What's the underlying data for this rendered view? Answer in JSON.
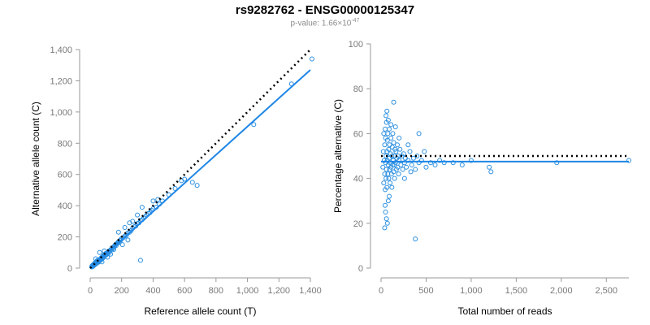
{
  "title": "rs9282762 - ENSG00000125347",
  "subtitle": {
    "prefix": "p-value: 1.66×10",
    "exponent": "-47"
  },
  "colors": {
    "points": "#2b8fe0",
    "fit": "#1f86e6",
    "reference": "#000000",
    "axis": "#9a9a9a"
  },
  "chart_data": [
    {
      "type": "scatter",
      "xlabel": "Reference allele count (T)",
      "ylabel": "Alternative allele count (C)",
      "xlim": [
        0,
        1400
      ],
      "ylim": [
        0,
        1400
      ],
      "xticks": [
        0,
        200,
        400,
        600,
        800,
        1000,
        1200,
        1400
      ],
      "yticks": [
        0,
        200,
        400,
        600,
        800,
        1000,
        1200,
        1400
      ],
      "xtick_labels": [
        "0",
        "200",
        "400",
        "600",
        "800",
        "1,000",
        "1,200",
        "1,400"
      ],
      "ytick_labels": [
        "0",
        "200",
        "400",
        "600",
        "800",
        "1,000",
        "1,200",
        "1,400"
      ],
      "reference_line": {
        "style": "dotted",
        "x": [
          0,
          1400
        ],
        "y": [
          0,
          1400
        ]
      },
      "fit_line": {
        "style": "solid",
        "x": [
          0,
          1400
        ],
        "y": [
          0,
          1270
        ]
      },
      "points": [
        [
          10,
          8
        ],
        [
          12,
          15
        ],
        [
          15,
          10
        ],
        [
          18,
          20
        ],
        [
          20,
          14
        ],
        [
          22,
          25
        ],
        [
          25,
          18
        ],
        [
          28,
          30
        ],
        [
          30,
          22
        ],
        [
          32,
          35
        ],
        [
          35,
          28
        ],
        [
          38,
          40
        ],
        [
          40,
          30
        ],
        [
          42,
          45
        ],
        [
          45,
          35
        ],
        [
          48,
          50
        ],
        [
          50,
          40
        ],
        [
          52,
          38
        ],
        [
          55,
          45
        ],
        [
          58,
          50
        ],
        [
          60,
          55
        ],
        [
          62,
          48
        ],
        [
          65,
          60
        ],
        [
          68,
          52
        ],
        [
          70,
          65
        ],
        [
          72,
          58
        ],
        [
          75,
          70
        ],
        [
          78,
          62
        ],
        [
          80,
          75
        ],
        [
          82,
          68
        ],
        [
          85,
          80
        ],
        [
          88,
          72
        ],
        [
          90,
          85
        ],
        [
          92,
          78
        ],
        [
          95,
          90
        ],
        [
          98,
          82
        ],
        [
          100,
          95
        ],
        [
          105,
          88
        ],
        [
          110,
          100
        ],
        [
          115,
          95
        ],
        [
          120,
          110
        ],
        [
          125,
          105
        ],
        [
          130,
          118
        ],
        [
          135,
          120
        ],
        [
          140,
          130
        ],
        [
          145,
          125
        ],
        [
          150,
          138
        ],
        [
          155,
          140
        ],
        [
          160,
          150
        ],
        [
          165,
          145
        ],
        [
          170,
          158
        ],
        [
          175,
          160
        ],
        [
          180,
          170
        ],
        [
          185,
          165
        ],
        [
          190,
          178
        ],
        [
          195,
          180
        ],
        [
          200,
          190
        ],
        [
          210,
          195
        ],
        [
          220,
          205
        ],
        [
          230,
          210
        ],
        [
          240,
          225
        ],
        [
          250,
          230
        ],
        [
          260,
          240
        ],
        [
          270,
          255
        ],
        [
          280,
          265
        ],
        [
          290,
          270
        ],
        [
          300,
          285
        ],
        [
          310,
          290
        ],
        [
          320,
          305
        ],
        [
          330,
          310
        ],
        [
          340,
          320
        ],
        [
          350,
          330
        ],
        [
          360,
          340
        ],
        [
          370,
          350
        ],
        [
          380,
          355
        ],
        [
          390,
          370
        ],
        [
          400,
          380
        ],
        [
          420,
          390
        ],
        [
          440,
          410
        ],
        [
          460,
          430
        ],
        [
          500,
          470
        ],
        [
          540,
          510
        ],
        [
          580,
          560
        ],
        [
          600,
          570
        ],
        [
          650,
          550
        ],
        [
          680,
          530
        ],
        [
          1040,
          920
        ],
        [
          1280,
          1180
        ],
        [
          1410,
          1340
        ],
        [
          60,
          100
        ],
        [
          90,
          110
        ],
        [
          130,
          90
        ],
        [
          220,
          260
        ],
        [
          250,
          290
        ],
        [
          300,
          340
        ],
        [
          400,
          430
        ],
        [
          180,
          230
        ],
        [
          110,
          70
        ],
        [
          240,
          180
        ],
        [
          320,
          50
        ],
        [
          35,
          60
        ],
        [
          75,
          40
        ],
        [
          150,
          120
        ],
        [
          205,
          150
        ],
        [
          270,
          300
        ],
        [
          330,
          390
        ],
        [
          430,
          440
        ]
      ]
    },
    {
      "type": "scatter",
      "xlabel": "Total number of reads",
      "ylabel": "Percentage alternative (C)",
      "xlim": [
        0,
        2750
      ],
      "ylim": [
        0,
        100
      ],
      "xticks": [
        0,
        500,
        1000,
        1500,
        2000,
        2500
      ],
      "yticks": [
        0,
        20,
        40,
        60,
        80,
        100
      ],
      "xtick_labels": [
        "0",
        "500",
        "1,000",
        "1,500",
        "2,000",
        "2,500"
      ],
      "ytick_labels": [
        "0",
        "20",
        "40",
        "60",
        "80",
        "100"
      ],
      "reference_line": {
        "style": "dotted",
        "x": [
          0,
          2750
        ],
        "y": [
          50,
          50
        ]
      },
      "fit_line": {
        "style": "solid",
        "x": [
          0,
          2750
        ],
        "y": [
          47.5,
          47.5
        ]
      },
      "points": [
        [
          20,
          45
        ],
        [
          25,
          52
        ],
        [
          30,
          38
        ],
        [
          30,
          60
        ],
        [
          35,
          48
        ],
        [
          40,
          42
        ],
        [
          40,
          55
        ],
        [
          45,
          35
        ],
        [
          45,
          62
        ],
        [
          50,
          47
        ],
        [
          50,
          58
        ],
        [
          55,
          40
        ],
        [
          55,
          50
        ],
        [
          60,
          44
        ],
        [
          60,
          65
        ],
        [
          65,
          52
        ],
        [
          65,
          36
        ],
        [
          70,
          48
        ],
        [
          70,
          57
        ],
        [
          75,
          42
        ],
        [
          75,
          60
        ],
        [
          80,
          46
        ],
        [
          80,
          30
        ],
        [
          85,
          53
        ],
        [
          85,
          40
        ],
        [
          90,
          49
        ],
        [
          90,
          62
        ],
        [
          95,
          44
        ],
        [
          95,
          55
        ],
        [
          100,
          47
        ],
        [
          100,
          38
        ],
        [
          105,
          51
        ],
        [
          110,
          45
        ],
        [
          110,
          58
        ],
        [
          115,
          42
        ],
        [
          120,
          50
        ],
        [
          120,
          36
        ],
        [
          125,
          54
        ],
        [
          130,
          46
        ],
        [
          130,
          60
        ],
        [
          135,
          48
        ],
        [
          140,
          43
        ],
        [
          140,
          56
        ],
        [
          145,
          50
        ],
        [
          150,
          46
        ],
        [
          150,
          40
        ],
        [
          155,
          53
        ],
        [
          160,
          47
        ],
        [
          165,
          52
        ],
        [
          170,
          44
        ],
        [
          175,
          49
        ],
        [
          180,
          55
        ],
        [
          185,
          45
        ],
        [
          190,
          50
        ],
        [
          195,
          42
        ],
        [
          200,
          48
        ],
        [
          210,
          53
        ],
        [
          220,
          46
        ],
        [
          230,
          50
        ],
        [
          240,
          44
        ],
        [
          250,
          51
        ],
        [
          260,
          47
        ],
        [
          270,
          49
        ],
        [
          280,
          45
        ],
        [
          300,
          48
        ],
        [
          320,
          52
        ],
        [
          340,
          46
        ],
        [
          360,
          49
        ],
        [
          380,
          44
        ],
        [
          400,
          50
        ],
        [
          420,
          47
        ],
        [
          450,
          48
        ],
        [
          480,
          52
        ],
        [
          500,
          45
        ],
        [
          550,
          47
        ],
        [
          600,
          46
        ],
        [
          650,
          48
        ],
        [
          700,
          47
        ],
        [
          800,
          47
        ],
        [
          900,
          46
        ],
        [
          1000,
          48
        ],
        [
          1200,
          45
        ],
        [
          1220,
          43
        ],
        [
          1950,
          47
        ],
        [
          2750,
          48
        ],
        [
          40,
          18
        ],
        [
          60,
          22
        ],
        [
          50,
          25
        ],
        [
          70,
          20
        ],
        [
          55,
          68
        ],
        [
          65,
          70
        ],
        [
          80,
          66
        ],
        [
          140,
          74
        ],
        [
          45,
          28
        ],
        [
          90,
          32
        ],
        [
          380,
          13
        ],
        [
          200,
          58
        ],
        [
          300,
          55
        ],
        [
          420,
          60
        ],
        [
          160,
          63
        ],
        [
          260,
          40
        ],
        [
          330,
          43
        ],
        [
          110,
          64
        ]
      ]
    }
  ]
}
